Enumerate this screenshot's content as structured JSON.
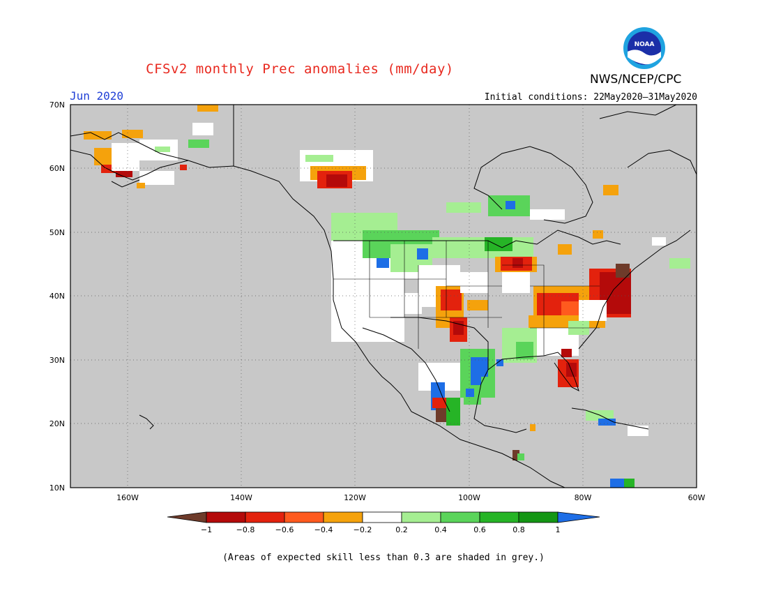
{
  "header": {
    "title": "CFSv2 monthly Prec anomalies (mm/day)",
    "agency": "NWS/NCEP/CPC",
    "logo_text": "NOAA",
    "month": "Jun 2020",
    "initial_conditions": "Initial conditions: 22May2020–31May2020"
  },
  "map": {
    "lat_labels": [
      "70N",
      "60N",
      "50N",
      "40N",
      "30N",
      "20N",
      "10N"
    ],
    "lon_labels": [
      "160W",
      "140W",
      "120W",
      "100W",
      "80W",
      "60W"
    ],
    "background_color": "#c8c8c8"
  },
  "legend": {
    "tick_labels": [
      "−1",
      "−0.8",
      "−0.6",
      "−0.4",
      "−0.2",
      "0.2",
      "0.4",
      "0.6",
      "0.8",
      "1"
    ],
    "colors": {
      "lt_-1": "#6e3b2a",
      "-1_-0.8": "#b40a0a",
      "-0.8_-0.6": "#e3220d",
      "-0.6_-0.4": "#ff5a1e",
      "-0.4_-0.2": "#f5a20c",
      "-0.2_0.2": "#ffffff",
      "0.2_0.4": "#a5ee92",
      "0.4_0.6": "#5ad45a",
      "0.6_0.8": "#26b426",
      "0.8_1": "#149614",
      "gt_1": "#1e6ee6"
    }
  },
  "footnote": "(Areas of expected skill less than 0.3 are shaded in grey.)"
}
